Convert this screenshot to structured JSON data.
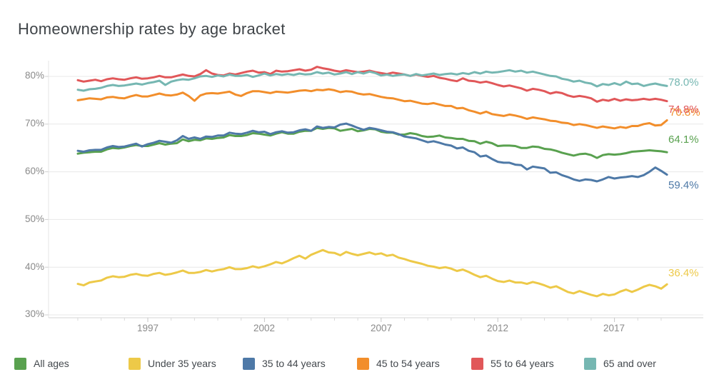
{
  "title": "Homeownership rates by age bracket",
  "axes": {
    "y": {
      "ticks": [
        "80%",
        "70%",
        "60%",
        "50%",
        "40%",
        "30%"
      ]
    },
    "x": {
      "ticks": [
        "1997",
        "2002",
        "2007",
        "2012",
        "2017"
      ]
    }
  },
  "legend": {
    "items": [
      {
        "label": "All ages",
        "color": "#59A14F"
      },
      {
        "label": "Under 35 years",
        "color": "#EDC948"
      },
      {
        "label": "35 to 44 years",
        "color": "#4E79A7"
      },
      {
        "label": "45 to 54 years",
        "color": "#F28E2B"
      },
      {
        "label": "55 to 64 years",
        "color": "#E15759"
      },
      {
        "label": "65 and over",
        "color": "#76B7B2"
      }
    ]
  },
  "chart_data": {
    "type": "line",
    "title": "Homeownership rates by age bracket",
    "x_unit": "quarter",
    "x_start_year": 1994.0,
    "x_step_years": 0.25,
    "x_tick_labels": [
      "1997",
      "2002",
      "2007",
      "2012",
      "2017"
    ],
    "y_tick_labels": [
      "30%",
      "40%",
      "50%",
      "60%",
      "70%",
      "80%"
    ],
    "ylim": [
      28,
      83
    ],
    "grid": "horizontal",
    "legend_position": "bottom",
    "series": [
      {
        "name": "All ages",
        "color": "#59A14F",
        "end_label": "64.1%",
        "values": [
          63.8,
          64.0,
          64.1,
          64.2,
          64.2,
          64.7,
          65.0,
          64.9,
          65.1,
          65.4,
          65.6,
          65.4,
          65.4,
          65.7,
          66.0,
          65.7,
          65.9,
          66.0,
          66.8,
          66.4,
          66.7,
          66.6,
          67.0,
          66.9,
          67.1,
          67.2,
          67.7,
          67.5,
          67.5,
          67.7,
          68.1,
          68.0,
          67.8,
          67.6,
          68.0,
          68.3,
          68.0,
          68.0,
          68.4,
          68.6,
          68.6,
          69.2,
          69.0,
          69.2,
          69.1,
          68.6,
          68.8,
          69.0,
          68.5,
          68.7,
          69.0,
          68.9,
          68.4,
          68.2,
          68.2,
          67.8,
          67.8,
          68.1,
          67.9,
          67.5,
          67.3,
          67.4,
          67.6,
          67.2,
          67.1,
          66.9,
          66.9,
          66.5,
          66.4,
          65.9,
          66.3,
          66.0,
          65.4,
          65.5,
          65.5,
          65.4,
          65.0,
          65.0,
          65.3,
          65.2,
          64.8,
          64.7,
          64.4,
          64.0,
          63.7,
          63.4,
          63.7,
          63.8,
          63.5,
          62.9,
          63.5,
          63.7,
          63.6,
          63.7,
          63.9,
          64.2,
          64.3,
          64.4,
          64.5,
          64.4,
          64.3,
          64.1
        ]
      },
      {
        "name": "Under 35 years",
        "color": "#EDC948",
        "end_label": "36.4%",
        "values": [
          36.5,
          36.2,
          36.8,
          37.0,
          37.2,
          37.8,
          38.1,
          37.9,
          38.0,
          38.4,
          38.6,
          38.3,
          38.2,
          38.6,
          38.8,
          38.4,
          38.6,
          38.9,
          39.3,
          38.8,
          38.8,
          39.0,
          39.4,
          39.1,
          39.4,
          39.6,
          40.0,
          39.6,
          39.6,
          39.8,
          40.2,
          39.9,
          40.2,
          40.6,
          41.1,
          40.8,
          41.3,
          41.9,
          42.4,
          41.8,
          42.6,
          43.1,
          43.6,
          43.1,
          43.0,
          42.5,
          43.2,
          42.8,
          42.5,
          42.8,
          43.1,
          42.7,
          42.9,
          42.4,
          42.6,
          42.0,
          41.7,
          41.3,
          41.0,
          40.7,
          40.3,
          40.1,
          39.8,
          40.0,
          39.7,
          39.2,
          39.5,
          39.0,
          38.4,
          37.9,
          38.2,
          37.6,
          37.1,
          36.9,
          37.2,
          36.8,
          36.8,
          36.5,
          36.9,
          36.6,
          36.2,
          35.7,
          36.0,
          35.4,
          34.8,
          34.5,
          35.0,
          34.6,
          34.2,
          33.9,
          34.4,
          34.1,
          34.3,
          34.9,
          35.3,
          34.8,
          35.3,
          35.9,
          36.3,
          36.0,
          35.5,
          36.4
        ]
      },
      {
        "name": "35 to 44 years",
        "color": "#4E79A7",
        "end_label": "59.4%",
        "values": [
          64.4,
          64.2,
          64.5,
          64.6,
          64.6,
          65.1,
          65.4,
          65.2,
          65.3,
          65.6,
          65.9,
          65.3,
          65.8,
          66.1,
          66.5,
          66.3,
          66.1,
          66.6,
          67.5,
          66.9,
          67.2,
          66.9,
          67.4,
          67.3,
          67.6,
          67.6,
          68.2,
          68.0,
          67.9,
          68.2,
          68.6,
          68.3,
          68.4,
          67.9,
          68.3,
          68.5,
          68.2,
          68.3,
          68.7,
          68.9,
          68.6,
          69.5,
          69.2,
          69.4,
          69.3,
          69.9,
          70.1,
          69.7,
          69.2,
          68.8,
          69.2,
          69.0,
          68.7,
          68.4,
          68.3,
          67.9,
          67.4,
          67.2,
          67.0,
          66.6,
          66.2,
          66.4,
          66.1,
          65.7,
          65.5,
          64.9,
          65.1,
          64.4,
          64.1,
          63.2,
          63.4,
          62.7,
          62.1,
          61.9,
          61.9,
          61.5,
          61.4,
          60.5,
          61.1,
          60.9,
          60.7,
          59.8,
          59.9,
          59.3,
          58.9,
          58.4,
          58.1,
          58.4,
          58.3,
          58.0,
          58.4,
          58.9,
          58.6,
          58.8,
          58.9,
          59.1,
          58.9,
          59.3,
          60.0,
          60.9,
          60.2,
          59.4
        ]
      },
      {
        "name": "45 to 54 years",
        "color": "#F28E2B",
        "end_label": "70.8%",
        "values": [
          75.0,
          75.2,
          75.4,
          75.3,
          75.2,
          75.6,
          75.7,
          75.5,
          75.4,
          75.8,
          76.1,
          75.8,
          75.8,
          76.1,
          76.4,
          76.1,
          76.0,
          76.2,
          76.6,
          75.9,
          74.9,
          76.0,
          76.4,
          76.5,
          76.4,
          76.6,
          76.8,
          76.2,
          75.9,
          76.5,
          76.9,
          76.9,
          76.7,
          76.5,
          76.8,
          76.7,
          76.6,
          76.8,
          77.0,
          77.1,
          76.9,
          77.2,
          77.1,
          77.3,
          77.1,
          76.7,
          76.9,
          76.8,
          76.4,
          76.2,
          76.3,
          76.0,
          75.7,
          75.5,
          75.4,
          75.1,
          74.8,
          74.9,
          74.6,
          74.3,
          74.2,
          74.4,
          74.1,
          73.8,
          73.8,
          73.3,
          73.4,
          72.9,
          72.6,
          72.2,
          72.6,
          72.1,
          71.9,
          71.7,
          72.0,
          71.8,
          71.5,
          71.1,
          71.4,
          71.2,
          71.0,
          70.7,
          70.6,
          70.3,
          70.2,
          69.8,
          70.0,
          69.8,
          69.5,
          69.2,
          69.5,
          69.3,
          69.1,
          69.4,
          69.2,
          69.6,
          69.6,
          70.0,
          70.2,
          69.7,
          69.8,
          70.8
        ]
      },
      {
        "name": "55 to 64 years",
        "color": "#E15759",
        "end_label": "74.8%",
        "values": [
          79.2,
          78.9,
          79.1,
          79.3,
          79.0,
          79.4,
          79.6,
          79.4,
          79.3,
          79.6,
          79.8,
          79.5,
          79.6,
          79.8,
          80.1,
          79.8,
          79.8,
          80.1,
          80.4,
          80.1,
          80.0,
          80.5,
          81.3,
          80.6,
          80.3,
          80.2,
          80.6,
          80.4,
          80.7,
          81.0,
          81.2,
          80.8,
          80.9,
          80.5,
          81.2,
          81.0,
          81.1,
          81.3,
          81.5,
          81.2,
          81.4,
          82.0,
          81.7,
          81.5,
          81.2,
          81.0,
          81.3,
          81.1,
          80.9,
          81.0,
          81.2,
          80.9,
          80.7,
          80.5,
          80.8,
          80.6,
          80.4,
          80.1,
          80.4,
          80.1,
          79.9,
          80.1,
          79.7,
          79.5,
          79.2,
          79.0,
          79.6,
          79.1,
          79.0,
          78.7,
          78.9,
          78.6,
          78.2,
          77.9,
          78.1,
          77.8,
          77.5,
          77.0,
          77.4,
          77.2,
          76.9,
          76.4,
          76.7,
          76.5,
          76.0,
          75.7,
          75.9,
          75.7,
          75.4,
          74.7,
          75.1,
          74.9,
          75.3,
          74.9,
          75.2,
          75.0,
          75.1,
          75.3,
          75.1,
          75.3,
          75.1,
          74.8
        ]
      },
      {
        "name": "65 and over",
        "color": "#76B7B2",
        "end_label": "78.0%",
        "values": [
          77.2,
          77.0,
          77.3,
          77.4,
          77.6,
          78.0,
          78.2,
          78.0,
          78.1,
          78.3,
          78.5,
          78.3,
          78.6,
          78.8,
          79.1,
          78.2,
          78.9,
          79.2,
          79.4,
          79.3,
          79.6,
          80.0,
          80.1,
          79.9,
          80.2,
          80.0,
          80.4,
          80.1,
          80.1,
          80.3,
          79.9,
          80.2,
          80.6,
          80.2,
          80.5,
          80.3,
          80.5,
          80.3,
          80.6,
          80.4,
          80.5,
          80.9,
          80.6,
          80.8,
          80.4,
          80.6,
          80.9,
          80.5,
          80.9,
          80.6,
          81.0,
          80.7,
          80.2,
          80.4,
          80.1,
          80.3,
          80.4,
          80.1,
          80.5,
          80.2,
          80.4,
          80.6,
          80.3,
          80.5,
          80.6,
          80.4,
          80.7,
          80.5,
          80.9,
          80.6,
          81.0,
          80.8,
          80.9,
          81.1,
          81.3,
          81.0,
          81.2,
          80.8,
          81.0,
          80.7,
          80.4,
          80.1,
          80.0,
          79.5,
          79.3,
          78.9,
          79.1,
          78.7,
          78.5,
          77.9,
          78.4,
          78.2,
          78.6,
          78.2,
          78.9,
          78.4,
          78.5,
          78.0,
          78.3,
          78.5,
          78.2,
          78.0
        ]
      }
    ]
  }
}
